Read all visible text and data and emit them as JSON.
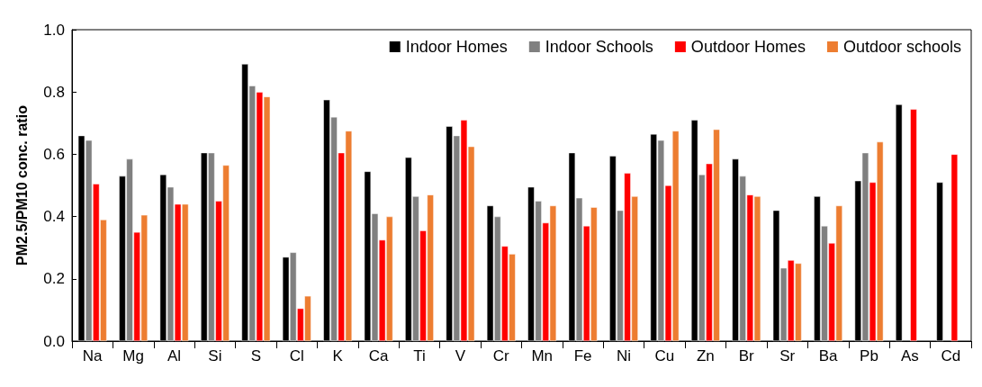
{
  "chart_data": {
    "type": "bar",
    "ylabel": "PM2.5/PM10 conc. ratio",
    "categories": [
      "Na",
      "Mg",
      "Al",
      "Si",
      "S",
      "Cl",
      "K",
      "Ca",
      "Ti",
      "V",
      "Cr",
      "Mn",
      "Fe",
      "Ni",
      "Cu",
      "Zn",
      "Br",
      "Sr",
      "Ba",
      "Pb",
      "As",
      "Cd"
    ],
    "series": [
      {
        "name": "Indoor Homes",
        "color": "#000000",
        "values": [
          0.66,
          0.53,
          0.535,
          0.605,
          0.89,
          0.27,
          0.775,
          0.545,
          0.59,
          0.69,
          0.435,
          0.495,
          0.605,
          0.595,
          0.665,
          0.71,
          0.585,
          0.42,
          0.465,
          0.515,
          0.76,
          0.51
        ]
      },
      {
        "name": "Indoor Schools",
        "color": "#808080",
        "values": [
          0.645,
          0.585,
          0.495,
          0.605,
          0.82,
          0.285,
          0.72,
          0.41,
          0.465,
          0.66,
          0.4,
          0.45,
          0.46,
          0.42,
          0.645,
          0.535,
          0.53,
          0.235,
          0.37,
          0.605,
          null,
          null
        ]
      },
      {
        "name": "Outdoor Homes",
        "color": "#ff0000",
        "values": [
          0.505,
          0.35,
          0.44,
          0.45,
          0.8,
          0.105,
          0.605,
          0.325,
          0.355,
          0.71,
          0.305,
          0.38,
          0.37,
          0.54,
          0.5,
          0.57,
          0.47,
          0.26,
          0.315,
          0.51,
          0.745,
          0.6
        ]
      },
      {
        "name": "Outdoor schools",
        "color": "#ed7d31",
        "values": [
          0.39,
          0.405,
          0.44,
          0.565,
          0.785,
          0.145,
          0.675,
          0.4,
          0.47,
          0.625,
          0.28,
          0.435,
          0.43,
          0.465,
          0.675,
          0.68,
          0.465,
          0.25,
          0.435,
          0.64,
          null,
          null
        ]
      }
    ],
    "ylim": [
      0,
      1
    ],
    "yticks": [
      {
        "value": 0,
        "label": "0.0"
      },
      {
        "value": 0.2,
        "label": "0.2"
      },
      {
        "value": 0.4,
        "label": "0.4"
      },
      {
        "value": 0.6,
        "label": "0.6"
      },
      {
        "value": 0.8,
        "label": "0.8"
      },
      {
        "value": 1,
        "label": "1.0"
      }
    ],
    "grid": false,
    "legend": "top right"
  }
}
